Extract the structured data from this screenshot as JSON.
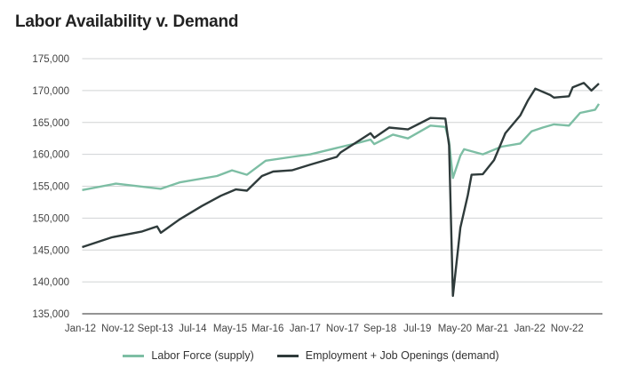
{
  "chart_data": {
    "type": "line",
    "title": "Labor Availability v. Demand",
    "xlabel": "",
    "ylabel": "",
    "ylim": [
      135000,
      175000
    ],
    "yticks": [
      135000,
      140000,
      145000,
      150000,
      155000,
      160000,
      165000,
      170000,
      175000
    ],
    "ytick_labels": [
      "135,000",
      "140,000",
      "145,000",
      "150,000",
      "155,000",
      "160,000",
      "165,000",
      "170,000",
      "175,000"
    ],
    "xtick_labels": [
      "Jan-12",
      "Nov-12",
      "Sept-13",
      "Jul-14",
      "May-15",
      "Mar-16",
      "Jan-17",
      "Nov-17",
      "Sep-18",
      "Jul-19",
      "May-20",
      "Mar-21",
      "Jan-22",
      "Nov-22"
    ],
    "xlim": [
      "2012-01",
      "2023-07"
    ],
    "grid": true,
    "legend_position": "bottom",
    "series": [
      {
        "name": "Labor Force (supply)",
        "color": "#7dbea4",
        "points": [
          [
            "2012-01",
            154400
          ],
          [
            "2012-10",
            155400
          ],
          [
            "2013-10",
            154600
          ],
          [
            "2014-03",
            155600
          ],
          [
            "2015-01",
            156600
          ],
          [
            "2015-05",
            157500
          ],
          [
            "2015-09",
            156800
          ],
          [
            "2016-02",
            159000
          ],
          [
            "2016-09",
            159600
          ],
          [
            "2017-02",
            160000
          ],
          [
            "2017-09",
            161000
          ],
          [
            "2018-02",
            161700
          ],
          [
            "2018-06",
            162300
          ],
          [
            "2018-07",
            161600
          ],
          [
            "2018-12",
            163100
          ],
          [
            "2019-04",
            162500
          ],
          [
            "2019-10",
            164500
          ],
          [
            "2020-02",
            164300
          ],
          [
            "2020-03",
            162000
          ],
          [
            "2020-04",
            156300
          ],
          [
            "2020-06",
            159800
          ],
          [
            "2020-07",
            160800
          ],
          [
            "2020-12",
            160000
          ],
          [
            "2021-05",
            161200
          ],
          [
            "2021-10",
            161700
          ],
          [
            "2022-01",
            163600
          ],
          [
            "2022-04",
            164200
          ],
          [
            "2022-07",
            164700
          ],
          [
            "2022-11",
            164500
          ],
          [
            "2023-02",
            166500
          ],
          [
            "2023-06",
            167000
          ],
          [
            "2023-07",
            167900
          ]
        ]
      },
      {
        "name": "Employment + Job Openings (demand)",
        "color": "#2f3b3b",
        "points": [
          [
            "2012-01",
            145450
          ],
          [
            "2012-09",
            147000
          ],
          [
            "2013-05",
            147900
          ],
          [
            "2013-09",
            148700
          ],
          [
            "2013-10",
            147700
          ],
          [
            "2014-03",
            149800
          ],
          [
            "2014-09",
            151900
          ],
          [
            "2015-02",
            153500
          ],
          [
            "2015-06",
            154500
          ],
          [
            "2015-09",
            154300
          ],
          [
            "2016-01",
            156600
          ],
          [
            "2016-04",
            157300
          ],
          [
            "2016-09",
            157500
          ],
          [
            "2017-02",
            158400
          ],
          [
            "2017-09",
            159600
          ],
          [
            "2017-10",
            160300
          ],
          [
            "2018-02",
            161800
          ],
          [
            "2018-06",
            163300
          ],
          [
            "2018-07",
            162600
          ],
          [
            "2018-11",
            164200
          ],
          [
            "2019-04",
            163900
          ],
          [
            "2019-08",
            165100
          ],
          [
            "2019-10",
            165700
          ],
          [
            "2020-02",
            165600
          ],
          [
            "2020-03",
            161400
          ],
          [
            "2020-04",
            137800
          ],
          [
            "2020-06",
            148500
          ],
          [
            "2020-08",
            153600
          ],
          [
            "2020-09",
            156800
          ],
          [
            "2020-12",
            156900
          ],
          [
            "2021-03",
            159100
          ],
          [
            "2021-06",
            163300
          ],
          [
            "2021-10",
            166100
          ],
          [
            "2021-12",
            168400
          ],
          [
            "2022-02",
            170300
          ],
          [
            "2022-06",
            169300
          ],
          [
            "2022-07",
            168900
          ],
          [
            "2022-11",
            169100
          ],
          [
            "2022-12",
            170500
          ],
          [
            "2023-03",
            171200
          ],
          [
            "2023-05",
            170000
          ],
          [
            "2023-07",
            171100
          ]
        ]
      }
    ]
  }
}
